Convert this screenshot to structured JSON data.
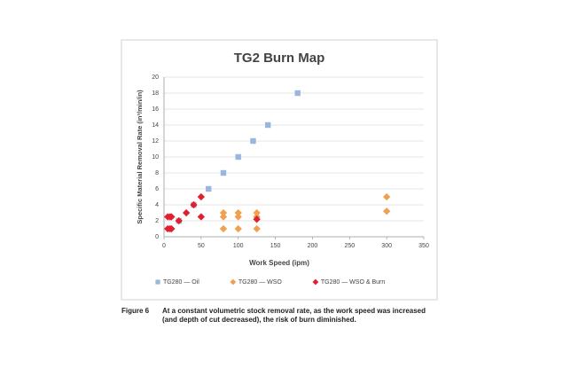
{
  "chart_data": {
    "type": "scatter",
    "title": "TG2 Burn Map",
    "x_label": "Work Speed (ipm)",
    "y_label": "Specific Material Removal Rate (in³/min/in)",
    "xlim": [
      0,
      350
    ],
    "xticks": [
      0,
      50,
      100,
      150,
      200,
      250,
      300,
      350
    ],
    "ylim": [
      0,
      20
    ],
    "yticks": [
      0,
      2,
      4,
      6,
      8,
      10,
      12,
      14,
      16,
      18,
      20
    ],
    "grid": true,
    "legend": "bottom",
    "series": [
      {
        "name": "TG280 — Oil",
        "color": "#9ab6de",
        "marker": "square",
        "x": [
          20,
          40,
          60,
          80,
          100,
          120,
          140,
          180
        ],
        "values": [
          2,
          4,
          6,
          8,
          10,
          12,
          14,
          18
        ]
      },
      {
        "name": "TG280 — WSO",
        "color": "#f0a050",
        "marker": "diamond",
        "x": [
          80,
          80,
          80,
          100,
          100,
          100,
          125,
          125,
          125,
          300,
          300
        ],
        "values": [
          1,
          2.5,
          3,
          1,
          2.5,
          3,
          1,
          2.5,
          3,
          3.2,
          5
        ]
      },
      {
        "name": "TG280 — WSO & Burn",
        "color": "#e0202e",
        "marker": "diamond",
        "x": [
          5,
          5,
          8,
          8,
          10,
          10,
          20,
          30,
          40,
          50,
          50,
          125
        ],
        "values": [
          1,
          2.5,
          1,
          2.5,
          1,
          2.5,
          2,
          3,
          4,
          2.5,
          5,
          2.2
        ]
      }
    ]
  },
  "caption": {
    "label": "Figure 6",
    "text": "At a constant volumetric stock removal rate, as the work speed was increased (and depth of cut decreased), the risk of burn diminished."
  }
}
